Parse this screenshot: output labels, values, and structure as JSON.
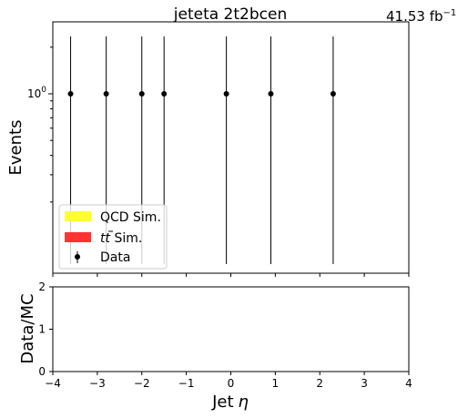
{
  "chart_data": {
    "type": "scatter",
    "title": "jeteta  2t2bcen",
    "luminosity_label": "41.53 fb",
    "luminosity_exponent": "−1",
    "xlabel": "Jet",
    "xlabel_symbol": "η",
    "ylabel": "Events",
    "ratio_ylabel": "Data/MC",
    "y_scale": "log",
    "y_tick_major_label": "10",
    "y_tick_major_exponent": "0",
    "xlim": [
      -4,
      4
    ],
    "ratio_ylim": [
      0,
      2
    ],
    "x_ticks": [
      {
        "value": -4,
        "label": "−4"
      },
      {
        "value": -3,
        "label": "−3"
      },
      {
        "value": -2,
        "label": "−2"
      },
      {
        "value": -1,
        "label": "−1"
      },
      {
        "value": 0,
        "label": "0"
      },
      {
        "value": 1,
        "label": "1"
      },
      {
        "value": 2,
        "label": "2"
      },
      {
        "value": 3,
        "label": "3"
      },
      {
        "value": 4,
        "label": "4"
      }
    ],
    "ratio_y_ticks": [
      {
        "value": 0,
        "label": "0"
      },
      {
        "value": 1,
        "label": "1"
      },
      {
        "value": 2,
        "label": "2"
      }
    ],
    "legend_position": "lower-left",
    "legend": [
      {
        "name": "QCD Sim.",
        "kind": "patch",
        "color": "#ffff33"
      },
      {
        "name": "t",
        "name_accent": "t",
        "name_suffix": " Sim.",
        "kind": "patch",
        "color": "#ff3333"
      },
      {
        "name": "Data",
        "kind": "errorbar",
        "color": "#000000"
      }
    ],
    "series": [
      {
        "name": "Data",
        "x": [
          -3.6,
          -2.8,
          -2.0,
          -1.5,
          -0.1,
          0.9,
          2.3
        ],
        "y": [
          1,
          1,
          1,
          1,
          1,
          1,
          1
        ]
      }
    ]
  }
}
